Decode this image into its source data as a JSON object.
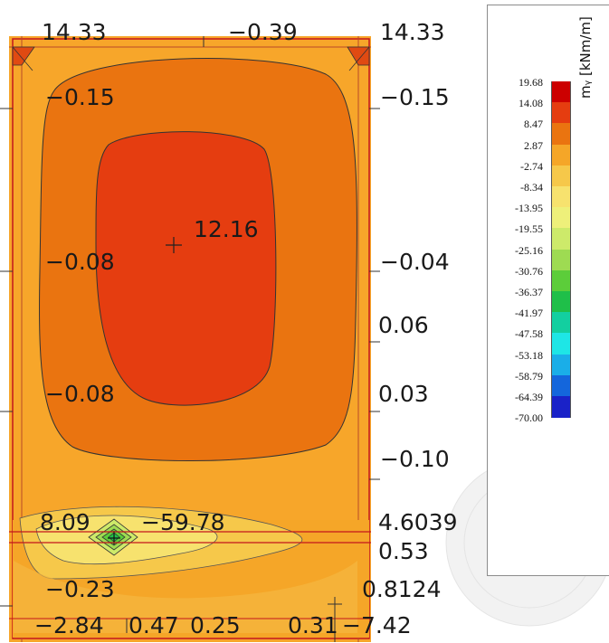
{
  "plot": {
    "labels": {
      "top_left": "14.33",
      "top_mid": "−0.39",
      "top_right": "14.33",
      "left_1": "−0.15",
      "right_1": "−0.15",
      "center_max": "12.16",
      "left_2": "−0.08",
      "right_2": "−0.04",
      "right_3": "0.06",
      "left_3": "−0.08",
      "right_4": "0.03",
      "right_5": "−0.10",
      "beam_left": "8.09",
      "beam_min": "−59.78",
      "beam_right": "4.6039",
      "right_6": "0.53",
      "bot_left": "−0.23",
      "bot_right": "0.8124",
      "base_1": "−2.84",
      "base_2": "0.47",
      "base_3": "0.25",
      "base_4": "0.31",
      "base_5": "−7.42"
    }
  },
  "legend": {
    "title": "mᵧ [kNm/m]",
    "entries": [
      {
        "value": "19.68",
        "color": "#cc0000"
      },
      {
        "value": "14.08",
        "color": "#e53d10"
      },
      {
        "value": "8.47",
        "color": "#ea7410"
      },
      {
        "value": "2.87",
        "color": "#f5a628"
      },
      {
        "value": "-2.74",
        "color": "#f6c84a"
      },
      {
        "value": "-8.34",
        "color": "#f7e26e"
      },
      {
        "value": "-13.95",
        "color": "#eef07a"
      },
      {
        "value": "-19.55",
        "color": "#cdea6a"
      },
      {
        "value": "-25.16",
        "color": "#9edb52"
      },
      {
        "value": "-30.76",
        "color": "#5ccd3a"
      },
      {
        "value": "-36.37",
        "color": "#1fbf49"
      },
      {
        "value": "-41.97",
        "color": "#13cfa0"
      },
      {
        "value": "-47.58",
        "color": "#1ee6e6"
      },
      {
        "value": "-53.18",
        "color": "#1aaee8"
      },
      {
        "value": "-58.79",
        "color": "#1466dc"
      },
      {
        "value": "-64.39",
        "color": "#1a22c8"
      },
      {
        "value": "-70.00",
        "color": "#5a0fbf"
      }
    ]
  }
}
